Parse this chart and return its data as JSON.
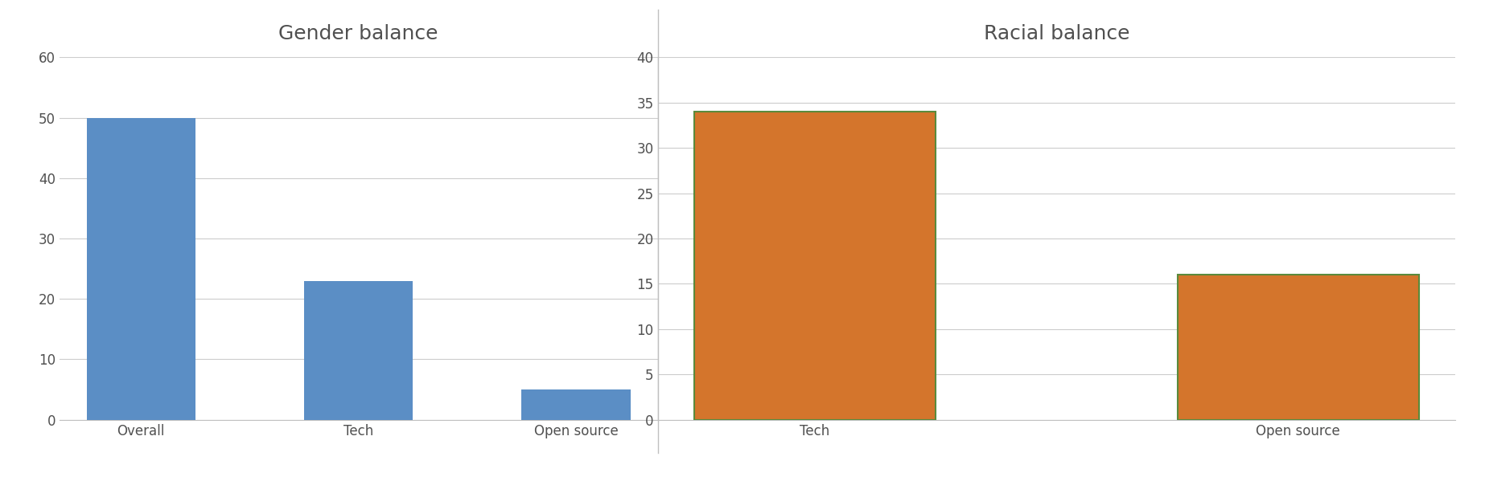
{
  "gender": {
    "title": "Gender balance",
    "categories": [
      "Overall",
      "Tech",
      "Open source"
    ],
    "values": [
      50,
      23,
      5
    ],
    "bar_color": "#5B8EC5",
    "ylim": [
      0,
      60
    ],
    "yticks": [
      0,
      10,
      20,
      30,
      40,
      50,
      60
    ]
  },
  "racial": {
    "title": "Racial balance",
    "categories": [
      "Tech",
      "Open source"
    ],
    "values": [
      34,
      16
    ],
    "bar_color": "#D4752C",
    "bar_edgecolor": "#5A8A3C",
    "ylim": [
      0,
      40
    ],
    "yticks": [
      0,
      5,
      10,
      15,
      20,
      25,
      30,
      35,
      40
    ]
  },
  "title_fontsize": 18,
  "tick_fontsize": 12,
  "background_color": "#ffffff",
  "grid_color": "#cccccc",
  "title_color": "#505050",
  "tick_color": "#505050",
  "divider_color": "#c0c0c0"
}
